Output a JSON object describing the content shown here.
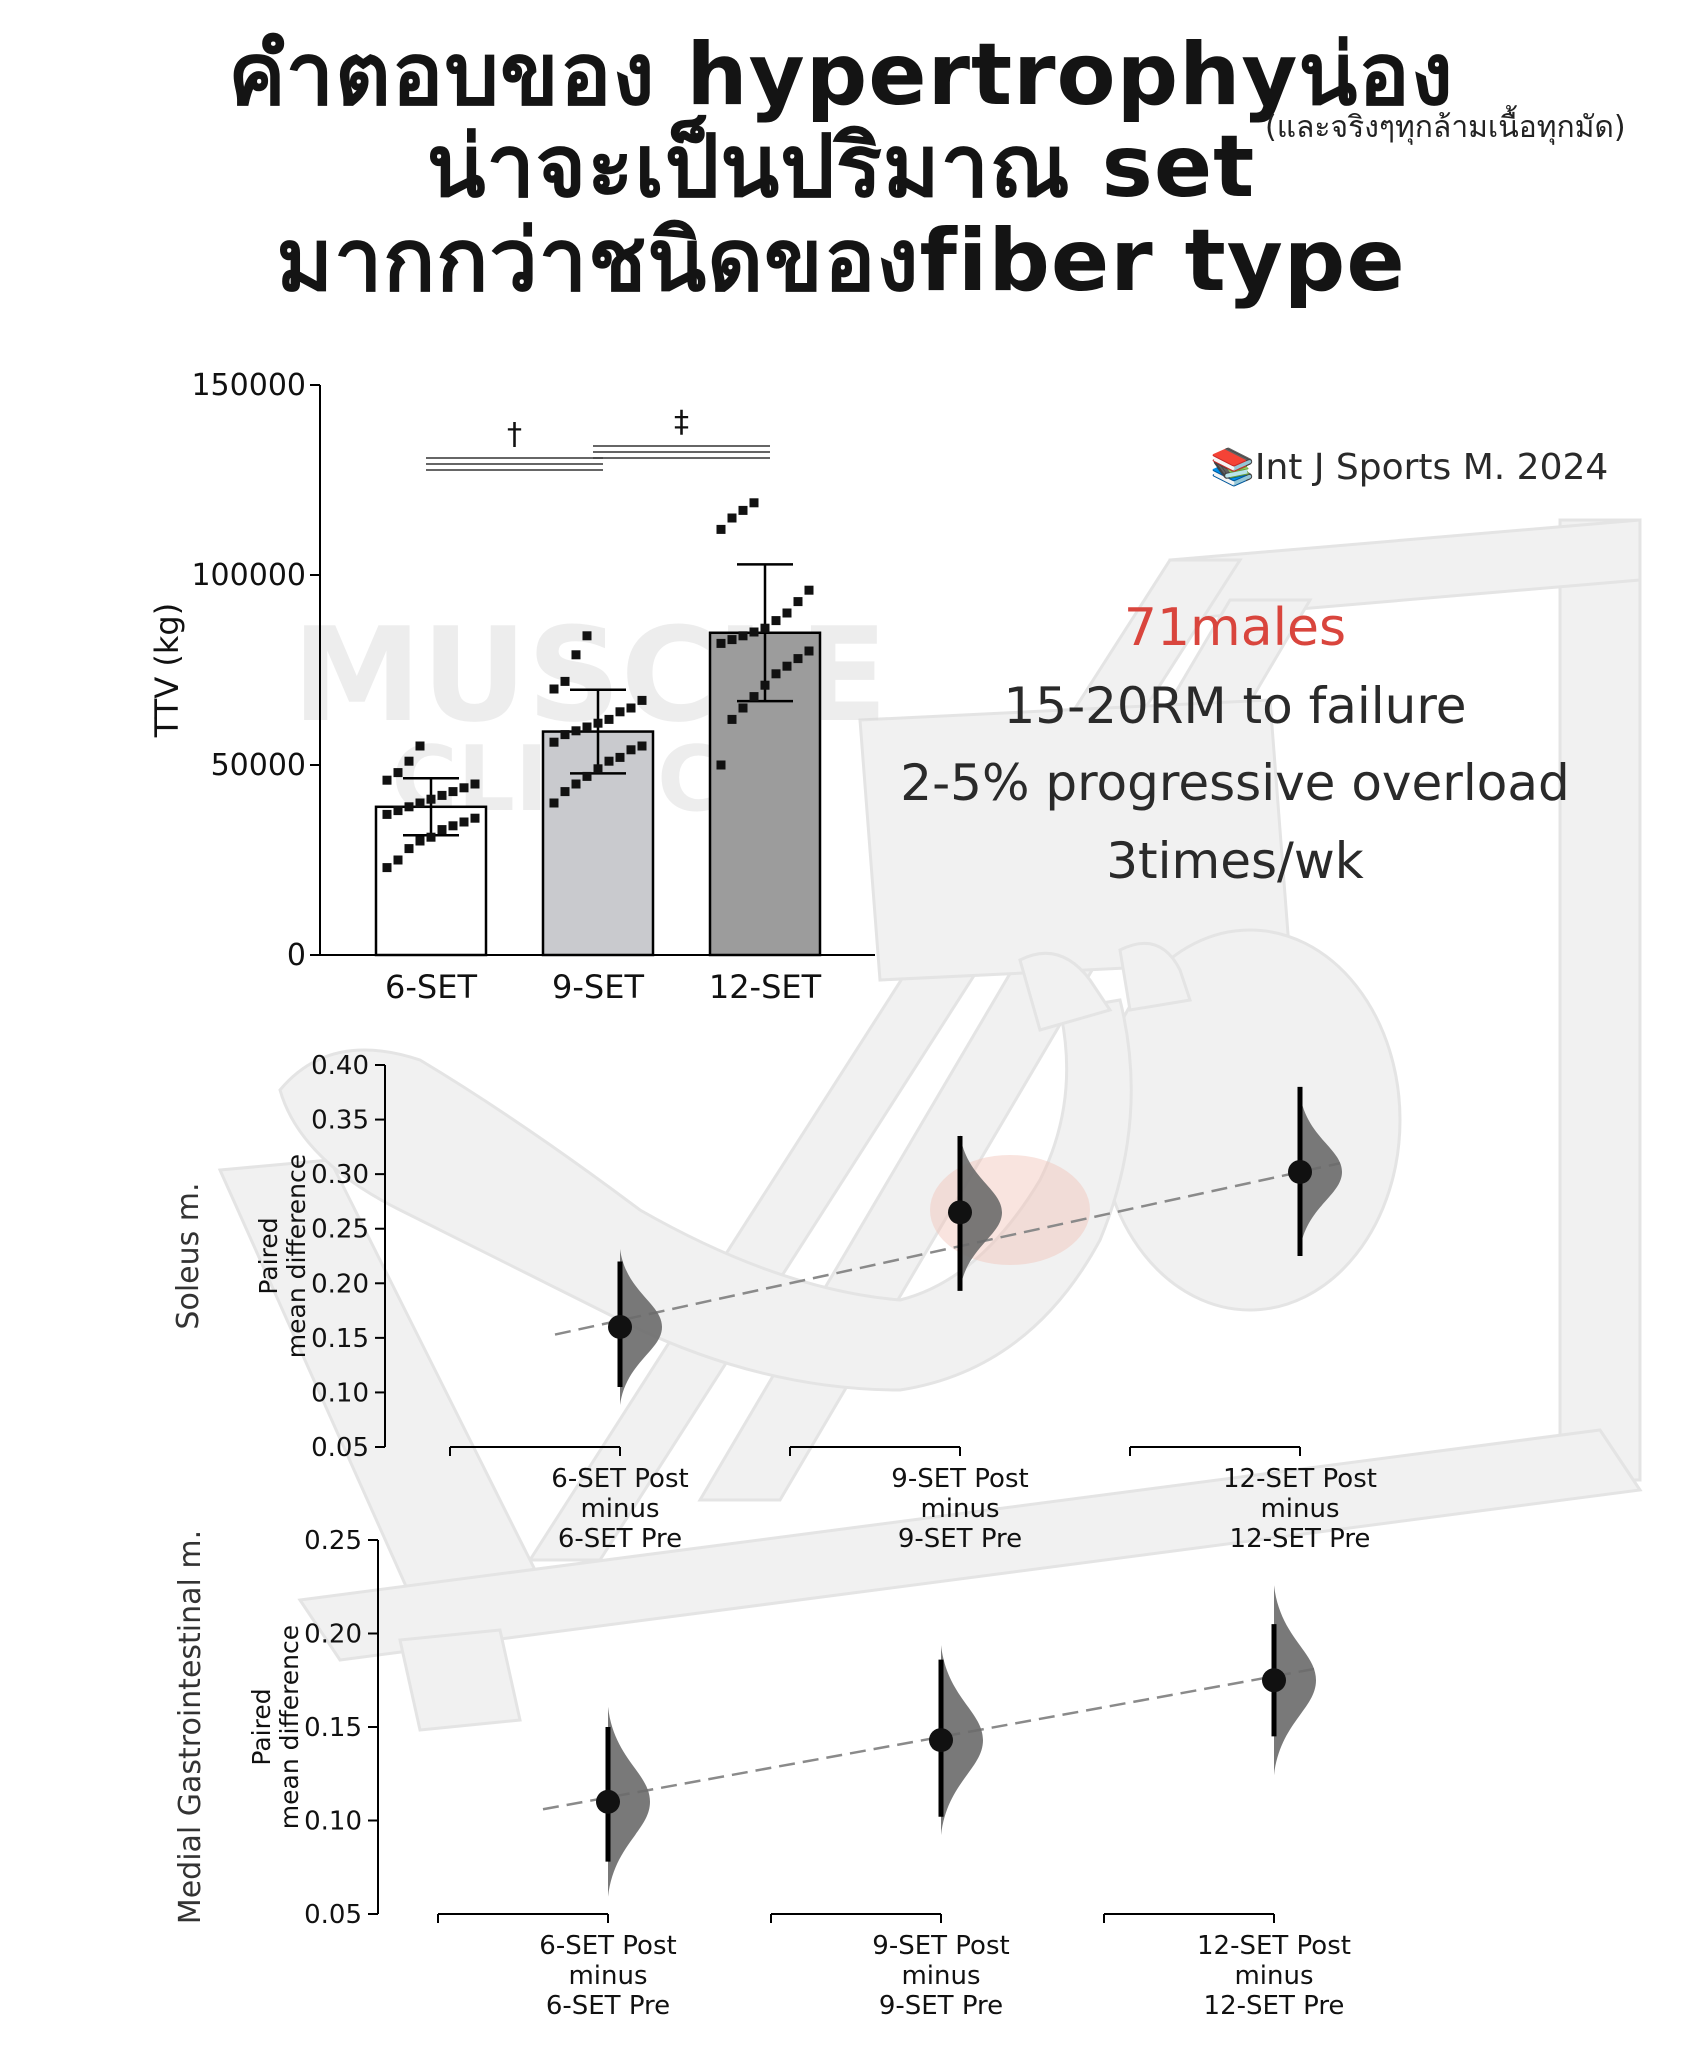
{
  "title": {
    "line1": "คำตอบของ hypertrophyน่อง",
    "line1_note": "(และจริงๆทุกล้ามเนื้อทุกมัด)",
    "line2": "น่าจะเป็นปริมาณ set",
    "line3": "มากกว่าชนิดของfiber type"
  },
  "info": {
    "citation_icon": "books-icon",
    "citation": "Int J Sports M. 2024",
    "subjects": "71males",
    "subjects_color": "#d9453d",
    "protocol": "15-20RM to failure",
    "overload": "2-5% progressive overload",
    "frequency": "3times/wk"
  },
  "watermark": {
    "line1": "MUSCLE",
    "line2": "CLINICZ"
  },
  "colors": {
    "bar_6": "#ffffff",
    "bar_9": "#c9cace",
    "bar_12": "#9c9c9c",
    "dot": "#111111",
    "dist": "#6a6a6a"
  },
  "chart_data": [
    {
      "type": "bar",
      "ylabel": "TTV (kg)",
      "ylim": [
        0,
        150000
      ],
      "yticks": [
        "0",
        "50000",
        "100000",
        "150000"
      ],
      "ytick_values": [
        0,
        50000,
        100000,
        150000
      ],
      "categories": [
        "6-SET",
        "9-SET",
        "12-SET"
      ],
      "values": [
        39000,
        58800,
        84800
      ],
      "sd": [
        7500,
        11000,
        18000
      ],
      "significance": [
        {
          "symbol": "†",
          "from": 0,
          "to": 1
        },
        {
          "symbol": "‡",
          "from": 1,
          "to": 2
        }
      ],
      "individual_points": [
        [
          23000,
          25000,
          28000,
          30000,
          31000,
          33000,
          34000,
          35000,
          36000,
          37000,
          38000,
          39000,
          40000,
          41000,
          42000,
          43000,
          44000,
          45000,
          46000,
          48000,
          51000,
          55000
        ],
        [
          40000,
          43000,
          45000,
          47000,
          49000,
          51000,
          52000,
          54000,
          55000,
          56000,
          58000,
          59000,
          60000,
          61000,
          62000,
          64000,
          65000,
          67000,
          70000,
          72000,
          79000,
          84000
        ],
        [
          50000,
          62000,
          65000,
          68000,
          71000,
          74000,
          76000,
          78000,
          80000,
          82000,
          83000,
          84000,
          85000,
          86000,
          88000,
          90000,
          93000,
          96000,
          112000,
          115000,
          117000,
          119000
        ]
      ]
    },
    {
      "type": "scatter",
      "title": "Soleus m.",
      "ylabel": "Paired mean difference",
      "ylim": [
        0.05,
        0.4
      ],
      "yticks": [
        "0.05",
        "0.10",
        "0.15",
        "0.20",
        "0.25",
        "0.30",
        "0.35",
        "0.40"
      ],
      "ytick_values": [
        0.05,
        0.1,
        0.15,
        0.2,
        0.25,
        0.3,
        0.35,
        0.4
      ],
      "categories": [
        "6-SET Post minus 6-SET Pre",
        "9-SET Post minus 9-SET Pre",
        "12-SET Post minus 12-SET Pre"
      ],
      "category_lines": [
        [
          "6-SET Post",
          "minus",
          "6-SET Pre"
        ],
        [
          "9-SET Post",
          "minus",
          "9-SET Pre"
        ],
        [
          "12-SET Post",
          "minus",
          "12-SET Pre"
        ]
      ],
      "values": [
        0.16,
        0.265,
        0.302
      ],
      "ci": [
        [
          0.105,
          0.22
        ],
        [
          0.193,
          0.335
        ],
        [
          0.225,
          0.38
        ]
      ],
      "trend": [
        0.153,
        0.31
      ]
    },
    {
      "type": "scatter",
      "title": "Medial Gastrointestinal m.",
      "ylabel": "Paired mean difference",
      "ylim": [
        0.05,
        0.25
      ],
      "yticks": [
        "0.05",
        "0.10",
        "0.15",
        "0.20",
        "0.25"
      ],
      "ytick_values": [
        0.05,
        0.1,
        0.15,
        0.2,
        0.25
      ],
      "categories": [
        "6-SET Post minus 6-SET Pre",
        "9-SET Post minus 9-SET Pre",
        "12-SET Post minus 12-SET Pre"
      ],
      "category_lines": [
        [
          "6-SET Post",
          "minus",
          "6-SET Pre"
        ],
        [
          "9-SET Post",
          "minus",
          "9-SET Pre"
        ],
        [
          "12-SET Post",
          "minus",
          "12-SET Pre"
        ]
      ],
      "values": [
        0.11,
        0.143,
        0.175
      ],
      "ci": [
        [
          0.078,
          0.15
        ],
        [
          0.102,
          0.186
        ],
        [
          0.145,
          0.205
        ]
      ],
      "trend": [
        0.106,
        0.181
      ]
    }
  ]
}
